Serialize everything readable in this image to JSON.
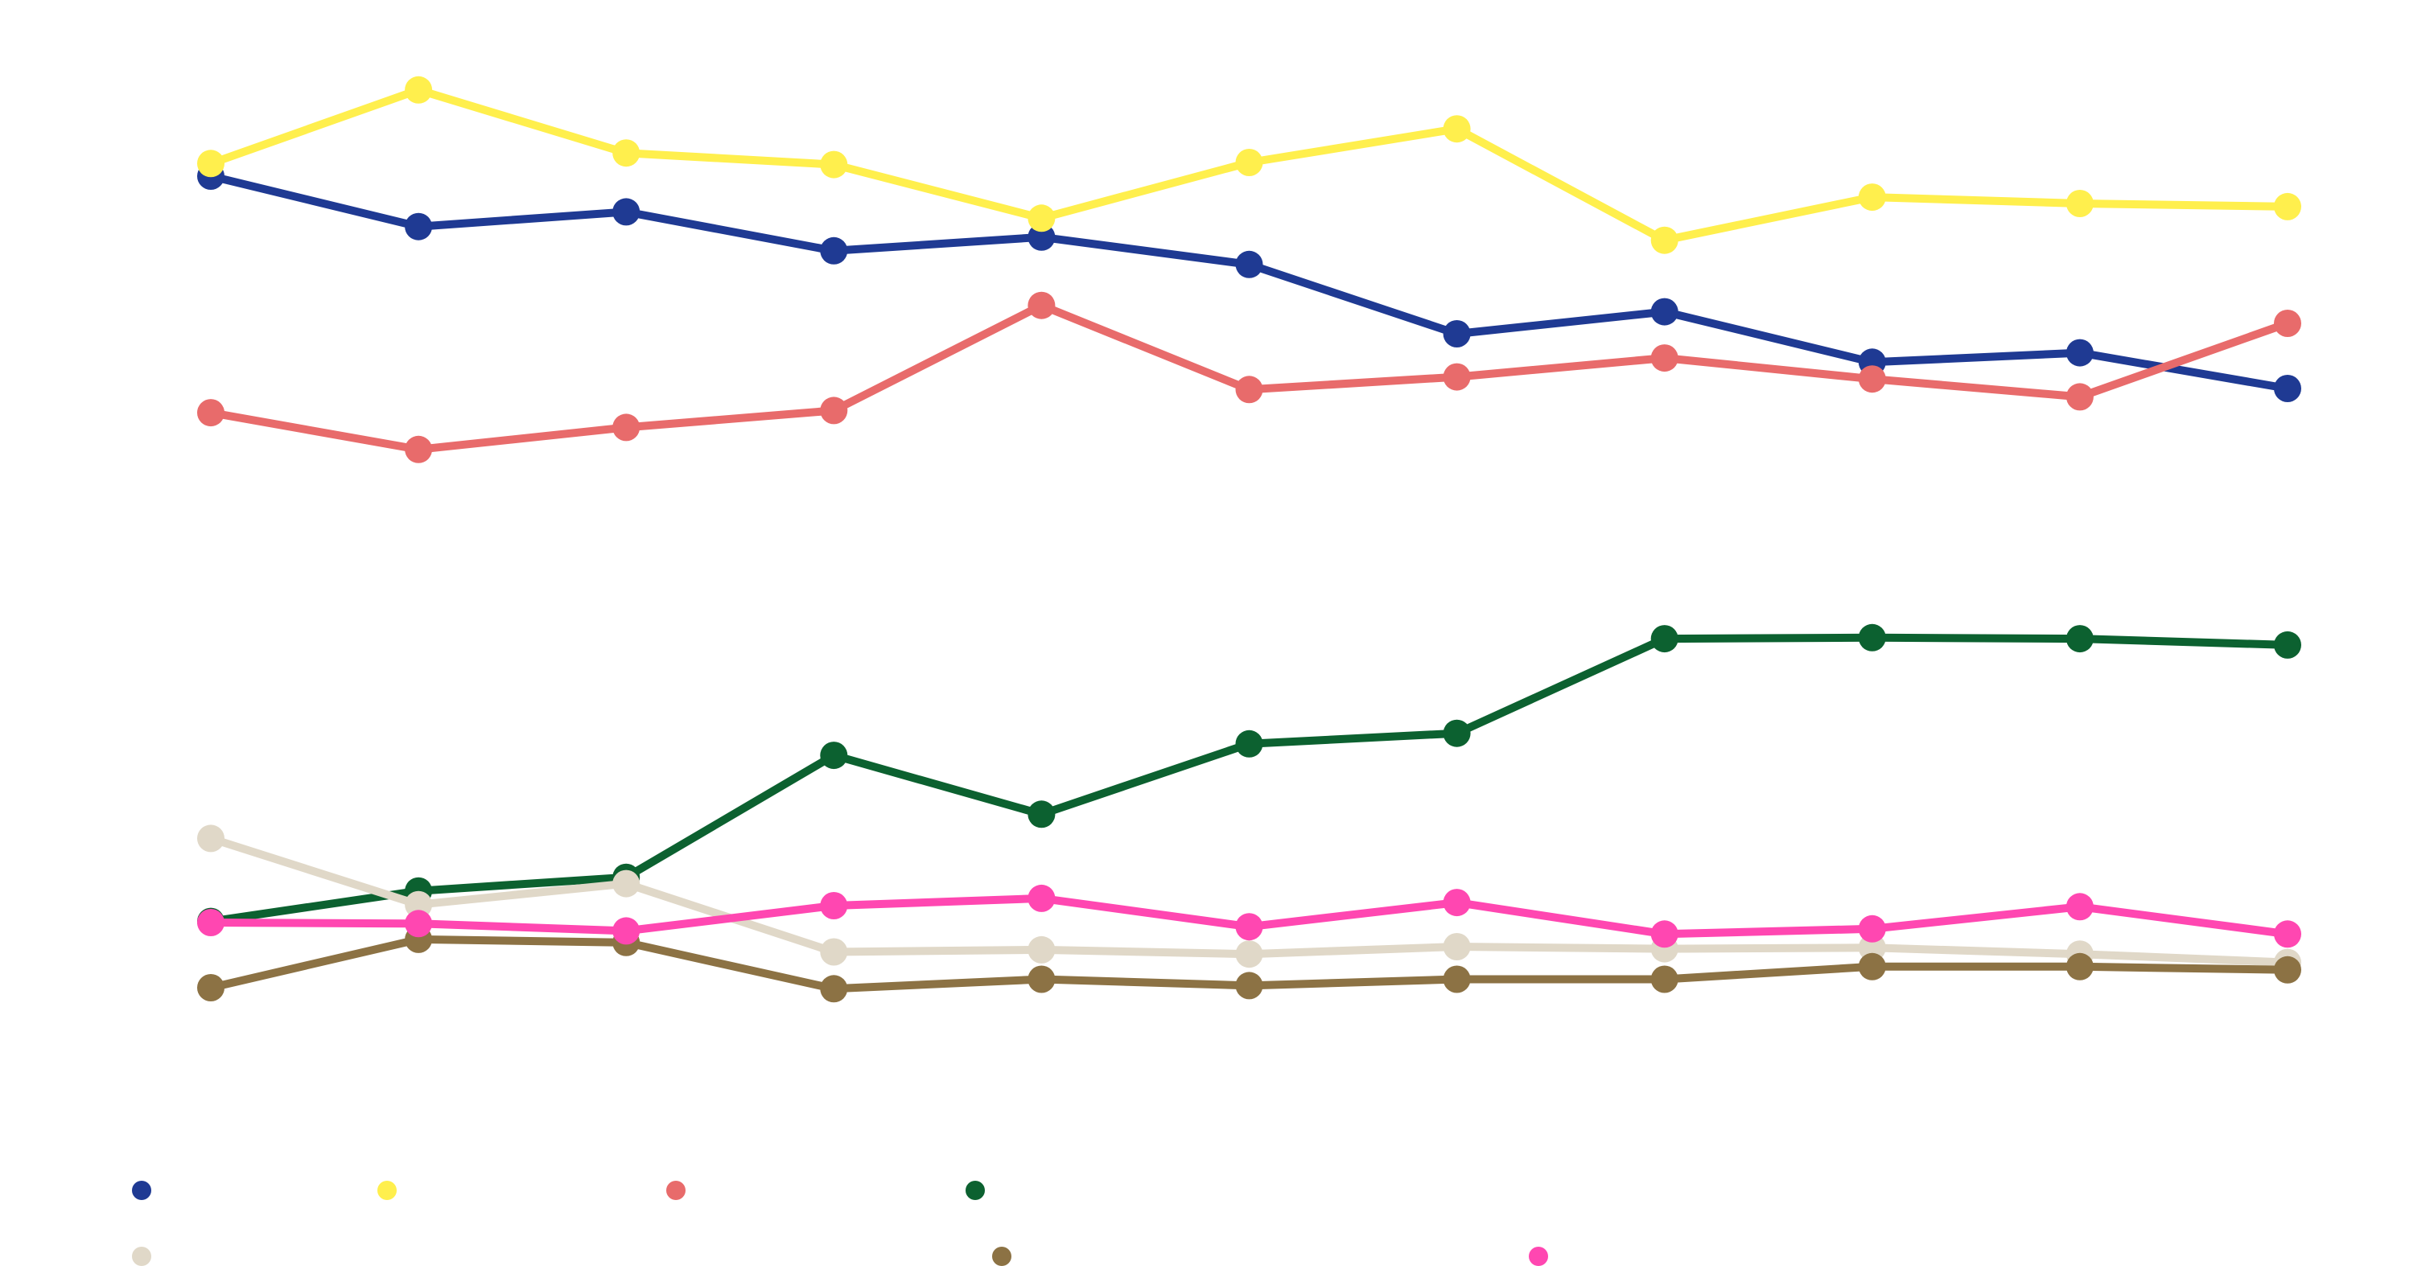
{
  "chart_data": {
    "type": "line",
    "title": "",
    "xlabel": "",
    "ylabel": "",
    "grid": false,
    "legend_position": "bottom",
    "x": [
      1,
      2,
      3,
      4,
      5,
      6,
      7,
      8,
      9,
      10,
      11
    ],
    "ylim": [
      0,
      100
    ],
    "series": [
      {
        "name": "",
        "color": "#1f3a93",
        "values": [
          86.0,
          81.2,
          82.6,
          78.9,
          80.2,
          77.6,
          71.0,
          73.1,
          68.3,
          69.2,
          65.8
        ]
      },
      {
        "name": "",
        "color": "#ffef4d",
        "values": [
          87.2,
          94.2,
          88.2,
          87.1,
          82.0,
          87.3,
          90.5,
          79.9,
          84.0,
          83.4,
          83.1
        ]
      },
      {
        "name": "",
        "color": "#e86b6b",
        "values": [
          63.5,
          60.0,
          62.1,
          63.7,
          73.7,
          65.7,
          66.9,
          68.7,
          66.7,
          65.0,
          72.0
        ]
      },
      {
        "name": "",
        "color": "#0c6130",
        "values": [
          15.1,
          18.0,
          19.3,
          30.9,
          25.3,
          32.0,
          33.0,
          42.0,
          42.1,
          42.0,
          41.4
        ]
      },
      {
        "name": "",
        "color": "#e0d8c8",
        "values": [
          23.0,
          16.7,
          18.7,
          12.2,
          12.4,
          12.0,
          12.7,
          12.5,
          12.6,
          12.0,
          11.2
        ]
      },
      {
        "name": "",
        "color": "#8c7244",
        "values": [
          8.8,
          13.4,
          13.1,
          8.7,
          9.6,
          9.0,
          9.6,
          9.6,
          10.8,
          10.8,
          10.5
        ]
      },
      {
        "name": "",
        "color": "#ff47b1",
        "values": [
          15.0,
          14.9,
          14.2,
          16.6,
          17.3,
          14.6,
          16.9,
          13.9,
          14.4,
          16.5,
          13.9
        ]
      }
    ]
  }
}
